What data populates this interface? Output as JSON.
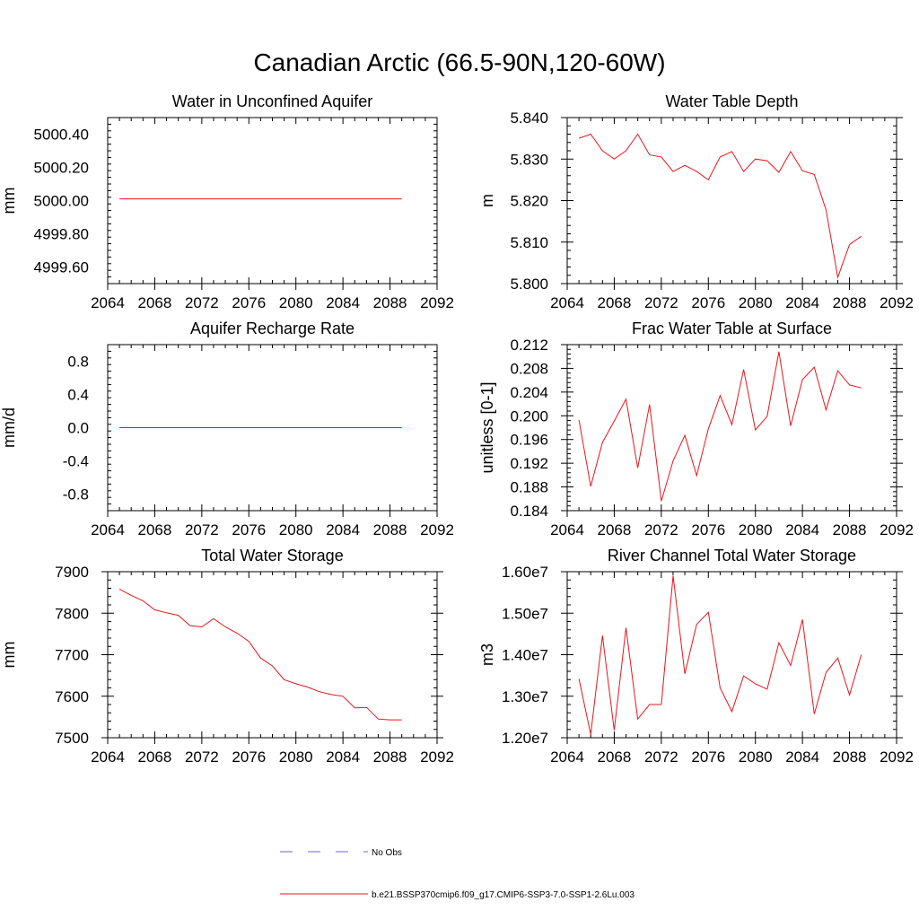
{
  "title": "Canadian Arctic (66.5-90N,120-60W)",
  "colors": {
    "model": "#e8151b",
    "obs": "#6b6bc8",
    "axis": "#000000"
  },
  "legend": [
    {
      "label": "No Obs",
      "style": "dashed",
      "color": "#6b6bc8"
    },
    {
      "label": "b.e21.BSSP370cmip6.f09_g17.CMIP6-SSP3-7.0-SSP1-2.6Lu.003",
      "style": "solid",
      "color": "#e8151b"
    }
  ],
  "chart_data": [
    {
      "type": "line",
      "title": "Water in Unconfined Aquifer",
      "ylabel": "mm",
      "xlim": [
        2064,
        2092
      ],
      "ylim": [
        4999.5,
        5000.5
      ],
      "xticks": [
        2064,
        2068,
        2072,
        2076,
        2080,
        2084,
        2088,
        2092
      ],
      "yticks": [
        4999.6,
        4999.8,
        5000.0,
        5000.2,
        5000.4
      ],
      "ytick_labels": [
        "4999.60",
        "4999.80",
        "5000.00",
        "5000.20",
        "5000.40"
      ],
      "series": [
        {
          "x": [
            2065,
            2066,
            2067,
            2068,
            2069,
            2070,
            2071,
            2072,
            2073,
            2074,
            2075,
            2076,
            2077,
            2078,
            2079,
            2080,
            2081,
            2082,
            2083,
            2084,
            2085,
            2086,
            2087,
            2088,
            2089
          ],
          "y": [
            5000.01,
            5000.01,
            5000.01,
            5000.01,
            5000.01,
            5000.01,
            5000.01,
            5000.01,
            5000.01,
            5000.01,
            5000.01,
            5000.01,
            5000.01,
            5000.01,
            5000.01,
            5000.01,
            5000.01,
            5000.01,
            5000.01,
            5000.01,
            5000.01,
            5000.01,
            5000.01,
            5000.01,
            5000.01
          ]
        }
      ]
    },
    {
      "type": "line",
      "title": "Water Table Depth",
      "ylabel": "m",
      "xlim": [
        2064,
        2092
      ],
      "ylim": [
        5.8,
        5.84
      ],
      "xticks": [
        2064,
        2068,
        2072,
        2076,
        2080,
        2084,
        2088,
        2092
      ],
      "yticks": [
        5.8,
        5.81,
        5.82,
        5.83,
        5.84
      ],
      "ytick_labels": [
        "5.800",
        "5.810",
        "5.820",
        "5.830",
        "5.840"
      ],
      "series": [
        {
          "x": [
            2065,
            2066,
            2067,
            2068,
            2069,
            2070,
            2071,
            2072,
            2073,
            2074,
            2075,
            2076,
            2077,
            2078,
            2079,
            2080,
            2081,
            2082,
            2083,
            2084,
            2085,
            2086,
            2087,
            2088,
            2089
          ],
          "y": [
            5.835,
            5.836,
            5.832,
            5.83,
            5.832,
            5.836,
            5.831,
            5.8305,
            5.827,
            5.8285,
            5.827,
            5.825,
            5.8305,
            5.8318,
            5.827,
            5.83,
            5.8296,
            5.8268,
            5.8318,
            5.8272,
            5.8263,
            5.8178,
            5.8015,
            5.8094,
            5.8114
          ]
        }
      ]
    },
    {
      "type": "line",
      "title": "Aquifer Recharge Rate",
      "ylabel": "mm/d",
      "xlim": [
        2064,
        2092
      ],
      "ylim": [
        -1.0,
        1.0
      ],
      "xticks": [
        2064,
        2068,
        2072,
        2076,
        2080,
        2084,
        2088,
        2092
      ],
      "yticks": [
        -0.8,
        -0.4,
        0.0,
        0.4,
        0.8
      ],
      "ytick_labels": [
        "-0.8",
        "-0.4",
        "0.0",
        "0.4",
        "0.8"
      ],
      "series": [
        {
          "x": [
            2065,
            2066,
            2067,
            2068,
            2069,
            2070,
            2071,
            2072,
            2073,
            2074,
            2075,
            2076,
            2077,
            2078,
            2079,
            2080,
            2081,
            2082,
            2083,
            2084,
            2085,
            2086,
            2087,
            2088,
            2089
          ],
          "y": [
            0,
            0,
            0,
            0,
            0,
            0,
            0,
            0,
            0,
            0,
            0,
            0,
            0,
            0,
            0,
            0,
            0,
            0,
            0,
            0,
            0,
            0,
            0,
            0,
            0
          ]
        }
      ]
    },
    {
      "type": "line",
      "title": "Frac Water Table at Surface",
      "ylabel": "unitless [0-1]",
      "xlim": [
        2064,
        2092
      ],
      "ylim": [
        0.184,
        0.212
      ],
      "xticks": [
        2064,
        2068,
        2072,
        2076,
        2080,
        2084,
        2088,
        2092
      ],
      "yticks": [
        0.184,
        0.188,
        0.192,
        0.196,
        0.2,
        0.204,
        0.208,
        0.212
      ],
      "ytick_labels": [
        "0.184",
        "0.188",
        "0.192",
        "0.196",
        "0.200",
        "0.204",
        "0.208",
        "0.212"
      ],
      "series": [
        {
          "x": [
            2065,
            2066,
            2067,
            2068,
            2069,
            2070,
            2071,
            2072,
            2073,
            2074,
            2075,
            2076,
            2077,
            2078,
            2079,
            2080,
            2081,
            2082,
            2083,
            2084,
            2085,
            2086,
            2087,
            2088,
            2089
          ],
          "y": [
            0.1993,
            0.1881,
            0.1955,
            0.1991,
            0.2028,
            0.1912,
            0.2019,
            0.1856,
            0.1924,
            0.1967,
            0.1899,
            0.1978,
            0.2034,
            0.1985,
            0.2078,
            0.1976,
            0.1999,
            0.2108,
            0.1983,
            0.2061,
            0.2082,
            0.201,
            0.2076,
            0.2052,
            0.2047
          ]
        }
      ]
    },
    {
      "type": "line",
      "title": "Total Water Storage",
      "ylabel": "mm",
      "xlim": [
        2064,
        2092
      ],
      "ylim": [
        7500,
        7900
      ],
      "xticks": [
        2064,
        2068,
        2072,
        2076,
        2080,
        2084,
        2088,
        2092
      ],
      "yticks": [
        7500,
        7600,
        7700,
        7800,
        7900
      ],
      "ytick_labels": [
        "7500",
        "7600",
        "7700",
        "7800",
        "7900"
      ],
      "series": [
        {
          "x": [
            2065,
            2066,
            2067,
            2068,
            2069,
            2070,
            2071,
            2072,
            2073,
            2074,
            2075,
            2076,
            2077,
            2078,
            2079,
            2080,
            2081,
            2082,
            2083,
            2084,
            2085,
            2086,
            2087,
            2088,
            2089
          ],
          "y": [
            7858,
            7843,
            7830,
            7808,
            7801,
            7795,
            7770,
            7767,
            7787,
            7767,
            7752,
            7732,
            7692,
            7673,
            7640,
            7630,
            7622,
            7611,
            7604,
            7600,
            7572,
            7573,
            7545,
            7543,
            7543
          ]
        }
      ]
    },
    {
      "type": "line",
      "title": "River Channel Total Water Storage",
      "ylabel": "m3",
      "xlim": [
        2064,
        2092
      ],
      "ylim": [
        12000000,
        16000000
      ],
      "xticks": [
        2064,
        2068,
        2072,
        2076,
        2080,
        2084,
        2088,
        2092
      ],
      "yticks": [
        12000000,
        13000000,
        14000000,
        15000000,
        16000000
      ],
      "ytick_labels": [
        "1.20e7",
        "1.30e7",
        "1.40e7",
        "1.50e7",
        "1.60e7"
      ],
      "series": [
        {
          "x": [
            2065,
            2066,
            2067,
            2068,
            2069,
            2070,
            2071,
            2072,
            2073,
            2074,
            2075,
            2076,
            2077,
            2078,
            2079,
            2080,
            2081,
            2082,
            2083,
            2084,
            2085,
            2086,
            2087,
            2088,
            2089
          ],
          "y": [
            13420000,
            12080000,
            14460000,
            12180000,
            14650000,
            12450000,
            12800000,
            12800000,
            15900000,
            13540000,
            14730000,
            15020000,
            13200000,
            12630000,
            13490000,
            13300000,
            13170000,
            14290000,
            13740000,
            14850000,
            12570000,
            13570000,
            13920000,
            13030000,
            14000000
          ]
        }
      ]
    }
  ]
}
